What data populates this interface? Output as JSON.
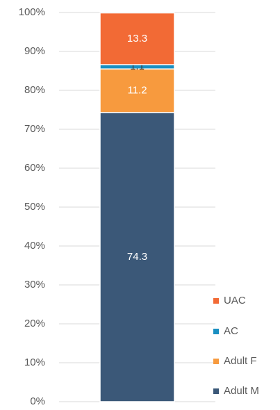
{
  "chart_data": {
    "type": "stacked_bar",
    "categories": [
      null
    ],
    "series": [
      {
        "name": "Adult M",
        "color": "#3b5878",
        "values": [
          74.3
        ]
      },
      {
        "name": "Adult F",
        "color": "#f79a3e",
        "values": [
          11.2
        ]
      },
      {
        "name": "AC",
        "color": "#1a8fc1",
        "values": [
          1.1
        ]
      },
      {
        "name": "UAC",
        "color": "#f26a35",
        "values": [
          13.3
        ]
      }
    ],
    "ylim": [
      0,
      100
    ],
    "yticks": [
      {
        "value": 0,
        "label": "0%"
      },
      {
        "value": 10,
        "label": "10%"
      },
      {
        "value": 20,
        "label": "20%"
      },
      {
        "value": 30,
        "label": "30%"
      },
      {
        "value": 40,
        "label": "40%"
      },
      {
        "value": 50,
        "label": "50%"
      },
      {
        "value": 60,
        "label": "60%"
      },
      {
        "value": 70,
        "label": "70%"
      },
      {
        "value": 80,
        "label": "80%"
      },
      {
        "value": 90,
        "label": "90%"
      },
      {
        "value": 100,
        "label": "100%"
      }
    ],
    "grid": true,
    "legend": "right"
  }
}
